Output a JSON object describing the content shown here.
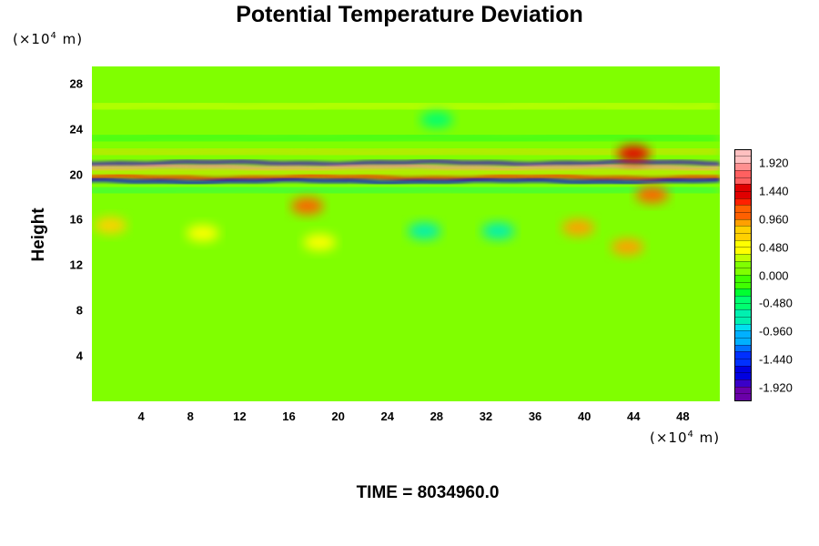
{
  "chart_data": {
    "type": "heatmap",
    "title": "Potential Temperature Deviation",
    "ylabel": "Height",
    "xlabel": "",
    "x_unit": "(×10",
    "x_unit_exp": "4",
    "x_unit_tail": " m)",
    "y_unit": "(×10",
    "y_unit_exp": "4",
    "y_unit_tail": " m)",
    "xlim": [
      0,
      51
    ],
    "ylim": [
      0,
      29.5
    ],
    "x_ticks": [
      "4",
      "8",
      "12",
      "16",
      "20",
      "24",
      "28",
      "32",
      "36",
      "40",
      "44",
      "48"
    ],
    "x_tick_values": [
      4,
      8,
      12,
      16,
      20,
      24,
      28,
      32,
      36,
      40,
      44,
      48
    ],
    "y_ticks": [
      "4",
      "8",
      "12",
      "16",
      "20",
      "24",
      "28"
    ],
    "y_tick_values": [
      4,
      8,
      12,
      16,
      20,
      24,
      28
    ],
    "colorbar": {
      "labels": [
        "1.920",
        "1.440",
        "0.960",
        "0.480",
        "0.000",
        "-0.480",
        "-0.960",
        "-1.440",
        "-1.920"
      ],
      "label_values": [
        1.92,
        1.44,
        0.96,
        0.48,
        0.0,
        -0.48,
        -0.96,
        -1.44,
        -1.92
      ],
      "min": -2.16,
      "max": 2.16,
      "levels": 36,
      "colors": [
        "#6a00a8",
        "#3a00c8",
        "#0000e0",
        "#0030ff",
        "#0070ff",
        "#00b0ff",
        "#00e0f0",
        "#00f0b0",
        "#00ff70",
        "#00ff30",
        "#40ff00",
        "#80ff00",
        "#c0ff00",
        "#ffff00",
        "#ffd000",
        "#ffa000",
        "#ff6000",
        "#ff2000",
        "#e00000",
        "#ff6060",
        "#ff9090",
        "#ffc0c0"
      ]
    },
    "field_features": [
      {
        "kind": "background",
        "value": 0.1
      },
      {
        "kind": "layer",
        "y": 21.0,
        "value": -1.9
      },
      {
        "kind": "layer",
        "y": 20.6,
        "value": 1.9
      },
      {
        "kind": "layer",
        "y": 20.2,
        "value": 0.6
      },
      {
        "kind": "layer",
        "y": 19.7,
        "value": 1.3
      },
      {
        "kind": "layer",
        "y": 19.4,
        "value": -1.6
      },
      {
        "kind": "layer",
        "y": 22.0,
        "value": 0.6
      },
      {
        "kind": "layer",
        "y": 18.6,
        "value": -0.4
      },
      {
        "kind": "layer",
        "y": 23.2,
        "value": -0.3
      },
      {
        "kind": "layer",
        "y": 26.0,
        "value": 0.4
      },
      {
        "kind": "patch",
        "x": 17.5,
        "y": 17.2,
        "value": 1.1
      },
      {
        "kind": "patch",
        "x": 39.5,
        "y": 15.3,
        "value": 0.9
      },
      {
        "kind": "patch",
        "x": 43.5,
        "y": 13.6,
        "value": 0.9
      },
      {
        "kind": "patch",
        "x": 45.5,
        "y": 18.2,
        "value": 1.1
      },
      {
        "kind": "patch",
        "x": 44.0,
        "y": 21.8,
        "value": 1.4
      },
      {
        "kind": "patch",
        "x": 9.0,
        "y": 14.8,
        "value": 0.5
      },
      {
        "kind": "patch",
        "x": 18.5,
        "y": 14.0,
        "value": 0.5
      },
      {
        "kind": "patch",
        "x": 27.0,
        "y": 15.0,
        "value": -0.6
      },
      {
        "kind": "patch",
        "x": 33.0,
        "y": 15.0,
        "value": -0.6
      },
      {
        "kind": "patch",
        "x": 1.5,
        "y": 15.5,
        "value": 0.7
      },
      {
        "kind": "patch",
        "x": 28.0,
        "y": 24.8,
        "value": -0.5
      }
    ]
  },
  "footer": {
    "time_label": "TIME = 8034960.0"
  }
}
